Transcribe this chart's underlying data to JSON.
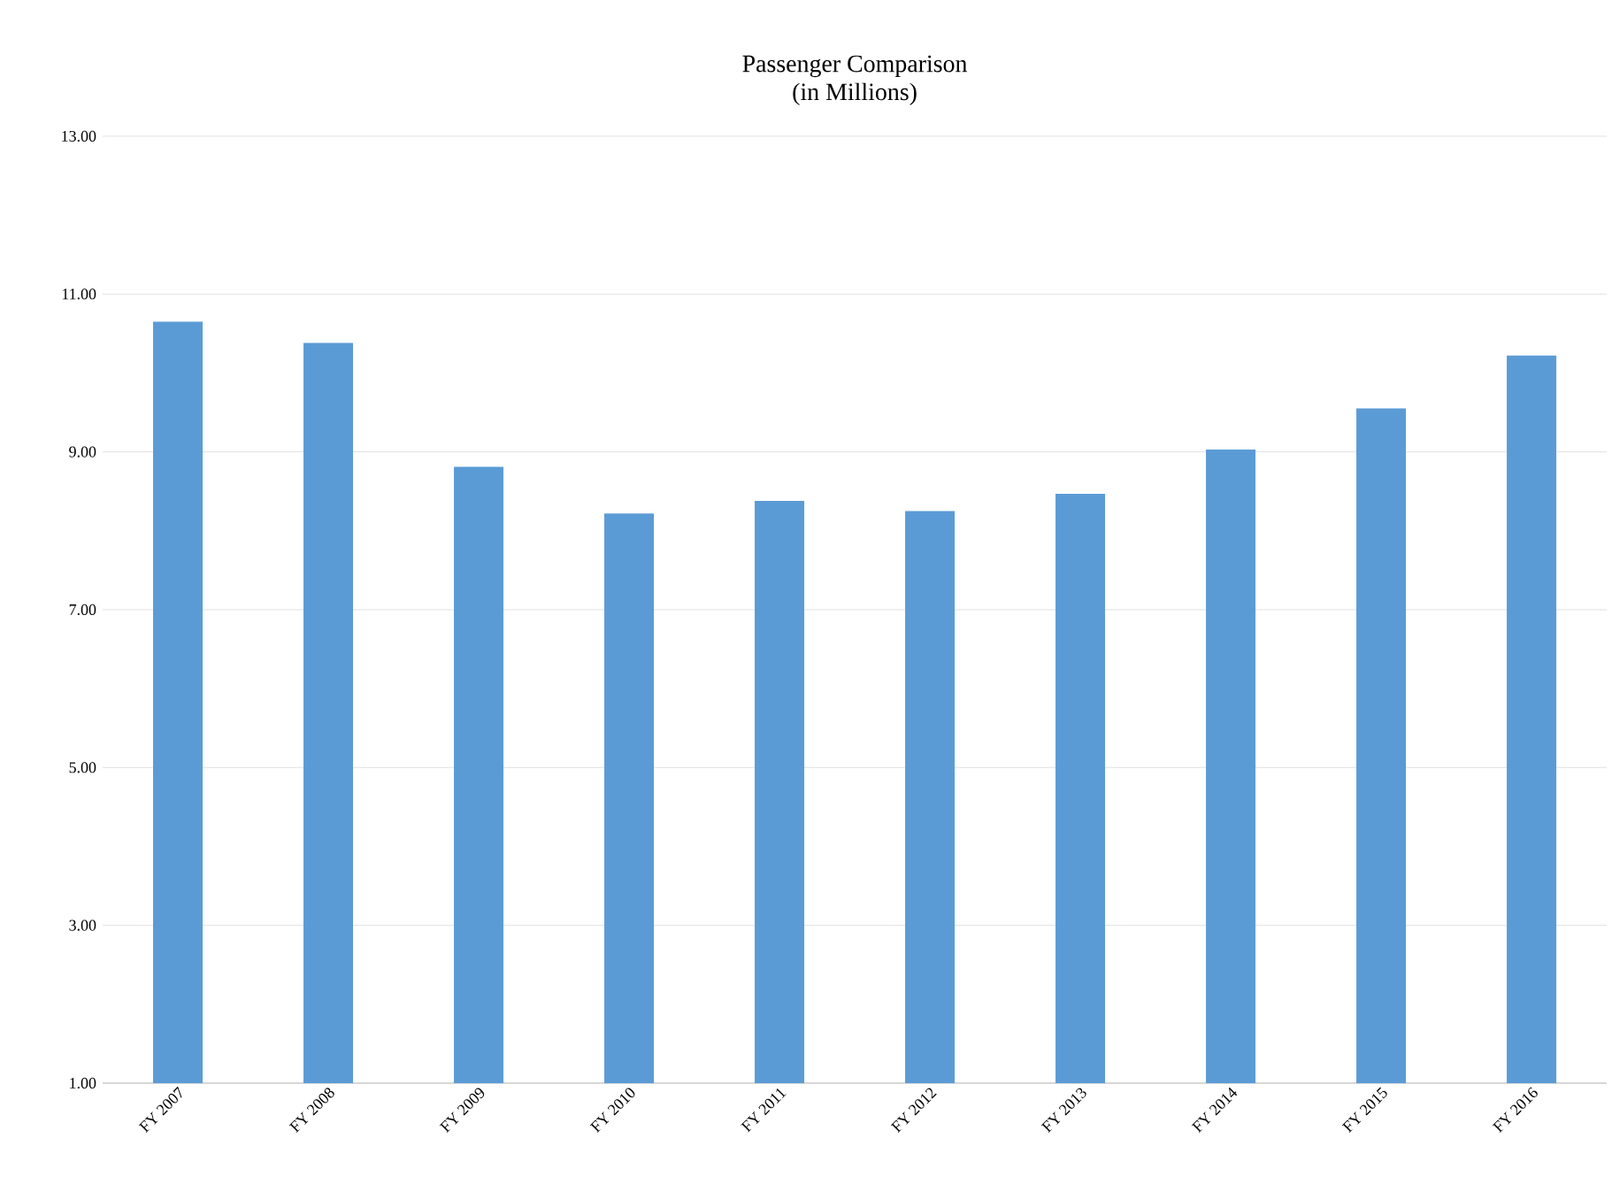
{
  "chart_data": {
    "type": "bar",
    "title": "Passenger Comparison\n(in Millions)",
    "categories": [
      "FY 2007",
      "FY 2008",
      "FY 2009",
      "FY 2010",
      "FY 2011",
      "FY 2012",
      "FY 2013",
      "FY 2014",
      "FY 2015",
      "FY 2016"
    ],
    "values": [
      10.65,
      10.38,
      8.81,
      8.22,
      8.38,
      8.25,
      8.47,
      9.03,
      9.55,
      10.22
    ],
    "color": "#5b9bd5",
    "ylim": [
      1,
      13
    ],
    "yticks": [
      {
        "value": 1,
        "label": "1.00"
      },
      {
        "value": 3,
        "label": "3.00"
      },
      {
        "value": 5,
        "label": "5.00"
      },
      {
        "value": 7,
        "label": "7.00"
      },
      {
        "value": 9,
        "label": "9.00"
      },
      {
        "value": 11,
        "label": "11.00"
      },
      {
        "value": 13,
        "label": "13.00"
      }
    ],
    "grid": "y"
  }
}
